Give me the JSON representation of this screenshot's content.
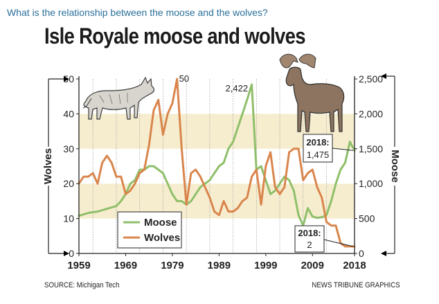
{
  "question": "What is the relationship between the moose and the wolves?",
  "title": "Isle Royale moose and wolves",
  "source": "SOURCE: Michigan Tech",
  "credit": "NEWS TRIBUNE GRAPHICS",
  "chart_data": {
    "type": "line",
    "title": "Isle Royale moose and wolves",
    "x_ticks": [
      "1959",
      "1969",
      "1979",
      "1989",
      "1999",
      "2009",
      "2018"
    ],
    "xlim": [
      1959,
      2018
    ],
    "left_axis": {
      "label": "Wolves",
      "ylim": [
        0,
        50
      ],
      "ticks": [
        "0",
        "10",
        "20",
        "30",
        "40",
        "50"
      ]
    },
    "right_axis": {
      "label": "Moose",
      "ylim": [
        0,
        2500
      ],
      "ticks": [
        "0",
        "500",
        "1,000",
        "1,500",
        "2,000",
        "2,500"
      ]
    },
    "legend": {
      "placement": "bottom-left",
      "entries": [
        "Moose",
        "Wolves"
      ]
    },
    "series": [
      {
        "name": "Moose",
        "axis": "right",
        "color": "#8fbf6a",
        "x": [
          1959,
          1960,
          1961,
          1962,
          1963,
          1964,
          1965,
          1966,
          1967,
          1968,
          1969,
          1970,
          1971,
          1972,
          1973,
          1974,
          1975,
          1976,
          1977,
          1978,
          1979,
          1980,
          1981,
          1982,
          1983,
          1984,
          1985,
          1986,
          1987,
          1988,
          1989,
          1990,
          1991,
          1992,
          1993,
          1994,
          1995,
          1996,
          1997,
          1998,
          1999,
          2000,
          2001,
          2002,
          2003,
          2004,
          2005,
          2006,
          2007,
          2008,
          2009,
          2010,
          2011,
          2012,
          2013,
          2014,
          2015,
          2016,
          2017,
          2018
        ],
        "values": [
          540,
          560,
          580,
          590,
          600,
          620,
          640,
          660,
          680,
          750,
          850,
          1000,
          1050,
          1200,
          1200,
          1250,
          1250,
          1200,
          1150,
          1000,
          850,
          750,
          750,
          700,
          750,
          850,
          950,
          1000,
          1050,
          1150,
          1250,
          1300,
          1500,
          1600,
          1800,
          2000,
          2200,
          2422,
          1200,
          1250,
          1050,
          850,
          900,
          1000,
          1100,
          1050,
          900,
          550,
          400,
          650,
          530,
          510,
          520,
          550,
          750,
          1000,
          1200,
          1300,
          1600,
          1475
        ]
      },
      {
        "name": "Wolves",
        "axis": "left",
        "color": "#d9854c",
        "x": [
          1959,
          1960,
          1961,
          1962,
          1963,
          1964,
          1965,
          1966,
          1967,
          1968,
          1969,
          1970,
          1971,
          1972,
          1973,
          1974,
          1975,
          1976,
          1977,
          1978,
          1979,
          1980,
          1981,
          1982,
          1983,
          1984,
          1985,
          1986,
          1987,
          1988,
          1989,
          1990,
          1991,
          1992,
          1993,
          1994,
          1995,
          1996,
          1997,
          1998,
          1999,
          2000,
          2001,
          2002,
          2003,
          2004,
          2005,
          2006,
          2007,
          2008,
          2009,
          2010,
          2011,
          2012,
          2013,
          2014,
          2015,
          2016,
          2017,
          2018
        ],
        "values": [
          20,
          22,
          22,
          23,
          20,
          26,
          28,
          26,
          22,
          22,
          17,
          18,
          20,
          23,
          24,
          31,
          41,
          44,
          34,
          40,
          43,
          50,
          30,
          14,
          23,
          24,
          22,
          19,
          16,
          12,
          11,
          15,
          12,
          12,
          13,
          15,
          16,
          22,
          24,
          14,
          25,
          29,
          19,
          17,
          19,
          29,
          30,
          30,
          21,
          23,
          24,
          19,
          16,
          9,
          8,
          8,
          3,
          2,
          2,
          2
        ]
      }
    ],
    "annotations": [
      {
        "text": "50",
        "series": "Wolves",
        "x": 1980
      },
      {
        "text": "2,422",
        "series": "Moose",
        "x": 1996
      },
      {
        "text": "2018:",
        "value_text": "1,475",
        "series": "Moose",
        "x": 2018
      },
      {
        "text": "2018:",
        "value_text": "2",
        "series": "Wolves",
        "x": 2018
      }
    ],
    "grid": "dotted vertical year lines, alternating horizontal bands"
  }
}
